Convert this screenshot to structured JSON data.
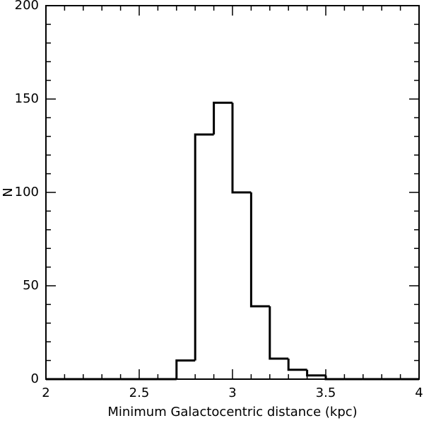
{
  "chart_data": {
    "type": "histogram",
    "xlabel": "Minimum Galactocentric distance (kpc)",
    "ylabel": "N",
    "bins": [
      2,
      2.1,
      2.2,
      2.3,
      2.4,
      2.5,
      2.6,
      2.7,
      2.8,
      2.9,
      3,
      3.1,
      3.2,
      3.3,
      3.4,
      3.5,
      3.6,
      3.7,
      3.8,
      3.9,
      4
    ],
    "values": [
      0,
      0,
      0,
      0,
      0,
      0,
      0,
      10,
      131,
      148,
      100,
      39,
      11,
      5,
      2,
      0,
      0,
      0,
      0,
      0
    ],
    "color": "#000000",
    "xlim": [
      2,
      4
    ],
    "xticks": [
      2,
      2.5,
      3,
      3.5,
      4
    ],
    "xminorticks": [
      2.1,
      2.2,
      2.3,
      2.4,
      2.6,
      2.7,
      2.8,
      2.9,
      3.1,
      3.2,
      3.3,
      3.4,
      3.6,
      3.7,
      3.8,
      3.9
    ],
    "ylim": [
      0,
      200
    ],
    "yticks": [
      0,
      50,
      100,
      150,
      200
    ],
    "yminorticks": [
      10,
      20,
      30,
      40,
      60,
      70,
      80,
      90,
      110,
      120,
      130,
      140,
      160,
      170,
      180,
      190
    ]
  }
}
